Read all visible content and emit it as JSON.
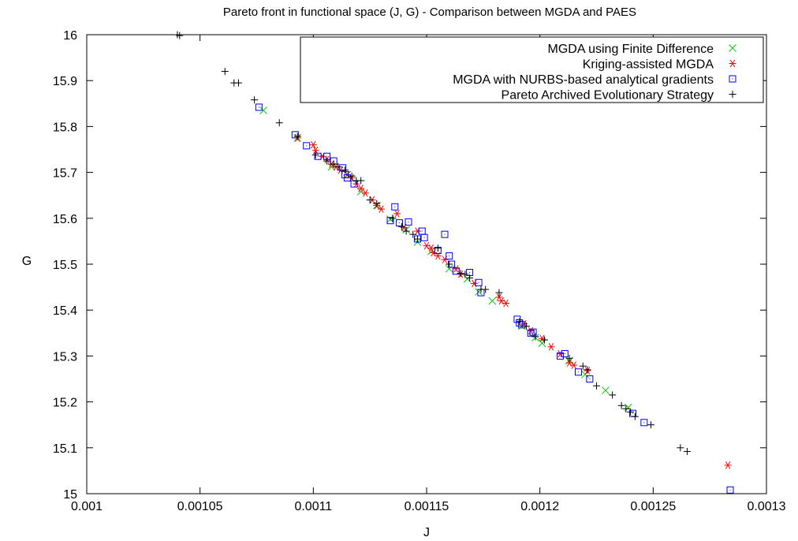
{
  "chart_data": {
    "type": "scatter",
    "title": "Pareto front in functional space (J, G) - Comparison between MGDA and PAES",
    "xlabel": "J",
    "ylabel": "G",
    "xlim": [
      0.001,
      0.0013
    ],
    "ylim": [
      15,
      16
    ],
    "xticks": [
      0.001,
      0.00105,
      0.0011,
      0.00115,
      0.0012,
      0.00125,
      0.0013
    ],
    "xtick_labels": [
      "0.001",
      "0.00105",
      "0.0011",
      "0.00115",
      "0.0012",
      "0.00125",
      "0.0013"
    ],
    "yticks": [
      15,
      15.1,
      15.2,
      15.3,
      15.4,
      15.5,
      15.6,
      15.7,
      15.8,
      15.9,
      16
    ],
    "ytick_labels": [
      "15",
      "15.1",
      "15.2",
      "15.3",
      "15.4",
      "15.5",
      "15.6",
      "15.7",
      "15.8",
      "15.9",
      "16"
    ],
    "grid": false,
    "legend_position": "top-right",
    "series": [
      {
        "name": "MGDA using Finite Difference",
        "color": "#00cc00",
        "marker": "x",
        "points": [
          [
            0.001078,
            15.835
          ],
          [
            0.001093,
            15.775
          ],
          [
            0.001108,
            15.712
          ],
          [
            0.001115,
            15.695
          ],
          [
            0.001121,
            15.658
          ],
          [
            0.001128,
            15.628
          ],
          [
            0.001134,
            15.598
          ],
          [
            0.001141,
            15.575
          ],
          [
            0.001146,
            15.548
          ],
          [
            0.001152,
            15.528
          ],
          [
            0.00116,
            15.49
          ],
          [
            0.001168,
            15.468
          ],
          [
            0.001173,
            15.44
          ],
          [
            0.001179,
            15.42
          ],
          [
            0.001192,
            15.365
          ],
          [
            0.001198,
            15.34
          ],
          [
            0.001201,
            15.328
          ],
          [
            0.001213,
            15.29
          ],
          [
            0.00122,
            15.26
          ],
          [
            0.001229,
            15.225
          ],
          [
            0.001239,
            15.188
          ]
        ]
      },
      {
        "name": "Kriging-assisted MGDA",
        "color": "#ff0000",
        "marker": "asterisk",
        "points": [
          [
            0.001093,
            15.775
          ],
          [
            0.0011,
            15.76
          ],
          [
            0.001101,
            15.748
          ],
          [
            0.001104,
            15.735
          ],
          [
            0.001106,
            15.728
          ],
          [
            0.001108,
            15.718
          ],
          [
            0.00111,
            15.712
          ],
          [
            0.001112,
            15.705
          ],
          [
            0.001115,
            15.695
          ],
          [
            0.001117,
            15.688
          ],
          [
            0.001119,
            15.675
          ],
          [
            0.001121,
            15.665
          ],
          [
            0.001123,
            15.655
          ],
          [
            0.001126,
            15.64
          ],
          [
            0.001128,
            15.628
          ],
          [
            0.00113,
            15.62
          ],
          [
            0.001137,
            15.61
          ],
          [
            0.00114,
            15.58
          ],
          [
            0.001146,
            15.572
          ],
          [
            0.00115,
            15.54
          ],
          [
            0.001152,
            15.535
          ],
          [
            0.001153,
            15.525
          ],
          [
            0.001155,
            15.518
          ],
          [
            0.001158,
            15.51
          ],
          [
            0.001163,
            15.49
          ],
          [
            0.001165,
            15.478
          ],
          [
            0.001171,
            15.458
          ],
          [
            0.001182,
            15.428
          ],
          [
            0.001183,
            15.42
          ],
          [
            0.001185,
            15.415
          ],
          [
            0.001193,
            15.37
          ],
          [
            0.001196,
            15.355
          ],
          [
            0.001201,
            15.338
          ],
          [
            0.001205,
            15.32
          ],
          [
            0.001209,
            15.305
          ],
          [
            0.001213,
            15.285
          ],
          [
            0.001215,
            15.28
          ],
          [
            0.001221,
            15.268
          ],
          [
            0.001283,
            15.062
          ]
        ]
      },
      {
        "name": "MGDA with NURBS-based analytical gradients",
        "color": "#0000ff",
        "marker": "square",
        "points": [
          [
            0.001076,
            15.842
          ],
          [
            0.001092,
            15.782
          ],
          [
            0.001097,
            15.758
          ],
          [
            0.001102,
            15.735
          ],
          [
            0.001106,
            15.735
          ],
          [
            0.001109,
            15.725
          ],
          [
            0.001113,
            15.71
          ],
          [
            0.001114,
            15.695
          ],
          [
            0.001115,
            15.688
          ],
          [
            0.001118,
            15.675
          ],
          [
            0.001134,
            15.595
          ],
          [
            0.001136,
            15.625
          ],
          [
            0.001138,
            15.59
          ],
          [
            0.001142,
            15.592
          ],
          [
            0.001146,
            15.555
          ],
          [
            0.001148,
            15.572
          ],
          [
            0.001149,
            15.558
          ],
          [
            0.001155,
            15.53
          ],
          [
            0.001158,
            15.565
          ],
          [
            0.00116,
            15.518
          ],
          [
            0.001161,
            15.5
          ],
          [
            0.001163,
            15.485
          ],
          [
            0.001169,
            15.482
          ],
          [
            0.001173,
            15.46
          ],
          [
            0.001174,
            15.438
          ],
          [
            0.00119,
            15.38
          ],
          [
            0.001191,
            15.372
          ],
          [
            0.001192,
            15.368
          ],
          [
            0.001196,
            15.35
          ],
          [
            0.001197,
            15.352
          ],
          [
            0.001209,
            15.3
          ],
          [
            0.001211,
            15.305
          ],
          [
            0.001217,
            15.265
          ],
          [
            0.001222,
            15.25
          ],
          [
            0.001241,
            15.175
          ],
          [
            0.001246,
            15.155
          ],
          [
            0.001284,
            15.008
          ]
        ]
      },
      {
        "name": "Pareto Archived Evolutionary Strategy",
        "color": "#000000",
        "marker": "plus",
        "points": [
          [
            0.00104,
            16.0
          ],
          [
            0.001041,
            15.998
          ],
          [
            0.001061,
            15.92
          ],
          [
            0.001065,
            15.895
          ],
          [
            0.001067,
            15.895
          ],
          [
            0.001074,
            15.858
          ],
          [
            0.001085,
            15.808
          ],
          [
            0.001093,
            15.778
          ],
          [
            0.001101,
            15.738
          ],
          [
            0.001106,
            15.725
          ],
          [
            0.001109,
            15.718
          ],
          [
            0.001111,
            15.712
          ],
          [
            0.001114,
            15.705
          ],
          [
            0.001117,
            15.692
          ],
          [
            0.001119,
            15.682
          ],
          [
            0.001121,
            15.682
          ],
          [
            0.001125,
            15.64
          ],
          [
            0.001128,
            15.632
          ],
          [
            0.001135,
            15.6
          ],
          [
            0.001139,
            15.582
          ],
          [
            0.001141,
            15.572
          ],
          [
            0.001144,
            15.565
          ],
          [
            0.001146,
            15.555
          ],
          [
            0.001155,
            15.535
          ],
          [
            0.00116,
            15.5
          ],
          [
            0.001165,
            15.48
          ],
          [
            0.001167,
            15.478
          ],
          [
            0.001169,
            15.47
          ],
          [
            0.001174,
            15.445
          ],
          [
            0.001176,
            15.445
          ],
          [
            0.001182,
            15.438
          ],
          [
            0.001191,
            15.375
          ],
          [
            0.001194,
            15.365
          ],
          [
            0.001198,
            15.342
          ],
          [
            0.001202,
            15.335
          ],
          [
            0.001213,
            15.295
          ],
          [
            0.001219,
            15.278
          ],
          [
            0.001221,
            15.27
          ],
          [
            0.001225,
            15.235
          ],
          [
            0.001232,
            15.215
          ],
          [
            0.001236,
            15.192
          ],
          [
            0.001238,
            15.185
          ],
          [
            0.00124,
            15.178
          ],
          [
            0.001242,
            15.168
          ],
          [
            0.001249,
            15.15
          ],
          [
            0.001262,
            15.1
          ],
          [
            0.001265,
            15.092
          ]
        ]
      }
    ]
  }
}
